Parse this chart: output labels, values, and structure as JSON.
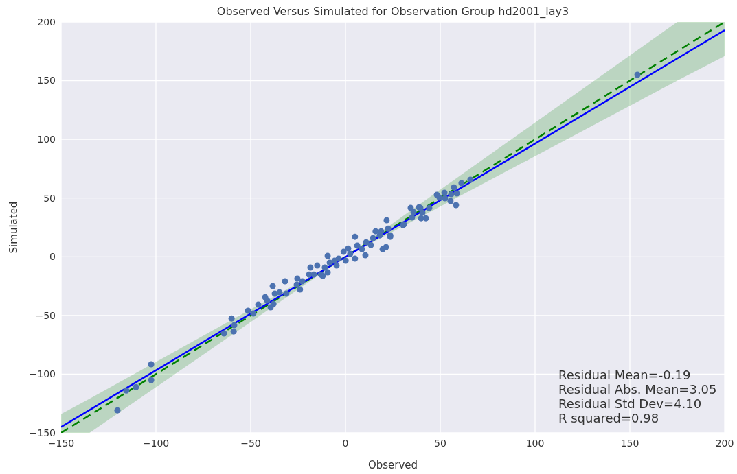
{
  "chart_data": {
    "type": "scatter",
    "title": "Observed Versus Simulated for Observation Group hd2001_lay3",
    "xlabel": "Observed",
    "ylabel": "Simulated",
    "xlim": [
      -150,
      200
    ],
    "xticks": [
      {
        "value": -150,
        "label": "−150"
      },
      {
        "value": -100,
        "label": "−100"
      },
      {
        "value": -50,
        "label": "−50"
      },
      0,
      50,
      100,
      150,
      200
    ],
    "ylim": [
      -150,
      200
    ],
    "yticks": [
      {
        "value": -150,
        "label": "−150"
      },
      {
        "value": -100,
        "label": "−100"
      },
      {
        "value": -50,
        "label": "−50"
      },
      0,
      50,
      100,
      150,
      200
    ],
    "grid": true,
    "annotations": [
      "Residual Mean=-0.19",
      "Residual Abs. Mean=3.05",
      "Residual Std Dev=4.10",
      "R squared=0.98"
    ],
    "series": [
      {
        "type": "line",
        "color": "#008000",
        "line_style": "dashed",
        "marker": "none",
        "x": [
          -150,
          -135,
          0,
          175,
          200
        ],
        "values": [
          -150,
          -135,
          0,
          175,
          200
        ],
        "lower": [
          -150,
          -150,
          0,
          150,
          171
        ],
        "upper": [
          -134,
          -121,
          0,
          200,
          200
        ]
      },
      {
        "type": "line",
        "color": "#0000ff",
        "line_style": "solid",
        "marker": "none",
        "x": [
          -150,
          200
        ],
        "values": [
          -145,
          193
        ]
      },
      {
        "marker": "circle",
        "color": "#4c72b0",
        "x": [
          154,
          -120.3,
          -115.6,
          -110.5,
          -102.5,
          -102.5,
          -60.1,
          -58.7,
          -59,
          -64.1,
          -51.4,
          -48.6,
          -46,
          -42.4,
          -38.4,
          -39.5,
          -38,
          -41.3,
          -37.3,
          -34.8,
          -31.2,
          -31.9,
          -25.4,
          -24,
          -25.7,
          -22.8,
          -18.5,
          -19.2,
          -14.9,
          -16.7,
          -13,
          -12,
          -10.9,
          -9.4,
          -9.4,
          -8.3,
          -5.8,
          -3.6,
          -4.7,
          -1,
          0.1,
          1.4,
          2.5,
          5,
          5,
          6.2,
          8.7,
          10.5,
          10.9,
          13.4,
          14.5,
          15.9,
          18.1,
          19.6,
          21.4,
          18.8,
          21.7,
          23.6,
          22.5,
          30.4,
          35.1,
          34.4,
          39.9,
          39.5,
          23.6,
          38.8,
          40.6,
          42.4,
          35.9,
          44.2,
          30.8,
          48.2,
          49.6,
          52.2,
          52.5,
          55.4,
          58.3,
          57.2,
          55.8,
          58.7,
          61.2,
          65.9
        ],
        "values": [
          155,
          -130.8,
          -113.9,
          -111,
          -91.6,
          -105,
          -52.5,
          -58.3,
          -63.6,
          -65.3,
          -46,
          -48.4,
          -40.8,
          -34.4,
          -25,
          -43.1,
          -40.2,
          -37.3,
          -31.4,
          -30.3,
          -31.4,
          -20.9,
          -18.6,
          -27.9,
          -23.8,
          -20.9,
          -9.2,
          -15.1,
          -7.5,
          -15.1,
          -15.1,
          -16.2,
          -9.2,
          0.7,
          -13.3,
          -5.1,
          -3.4,
          -1.6,
          -7.5,
          4.2,
          -3.4,
          7.1,
          2.5,
          17,
          -1.6,
          9.5,
          6.5,
          1.3,
          12.4,
          10,
          15.9,
          21.7,
          18.2,
          6.5,
          8.3,
          21.7,
          31.1,
          18.2,
          24,
          27,
          33.4,
          41.6,
          32.8,
          41.6,
          17,
          42.2,
          37.5,
          32.8,
          38.1,
          41.6,
          27.6,
          52.7,
          50.4,
          54.5,
          49.8,
          47.5,
          44,
          59.1,
          53.3,
          53.9,
          62.7,
          65.6
        ]
      }
    ]
  }
}
